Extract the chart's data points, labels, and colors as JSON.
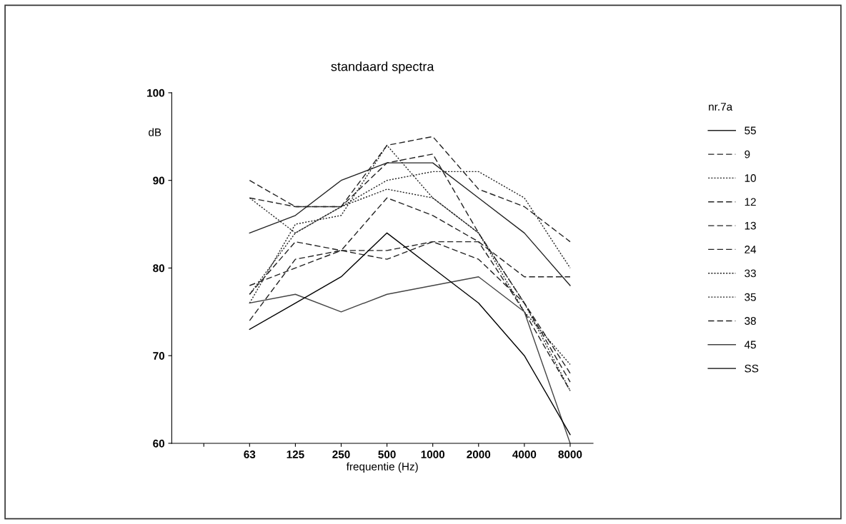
{
  "chart_data": {
    "type": "line",
    "title": "standaard spectra",
    "xlabel": "frequentie (Hz)",
    "ylabel": "dB",
    "legend_title": "nr.7a",
    "categories": [
      null,
      "63",
      "125",
      "250",
      "500",
      "1000",
      "2000",
      "4000",
      "8000"
    ],
    "ylim": [
      60,
      100
    ],
    "yticks": [
      60,
      70,
      80,
      90,
      100
    ],
    "grid": false,
    "legend": "right",
    "marker": "none",
    "series": [
      {
        "name": "55",
        "color": "#222222",
        "line_style": "solid",
        "values": [
          null,
          84,
          86,
          90,
          92,
          92,
          88,
          84,
          78
        ]
      },
      {
        "name": "9",
        "color": "#222222",
        "line_style": "dashed",
        "values": [
          null,
          74,
          81,
          82,
          88,
          86,
          83,
          79,
          79
        ]
      },
      {
        "name": "10",
        "color": "#222222",
        "line_style": "dotted",
        "values": [
          null,
          76,
          85,
          86,
          94,
          88,
          84,
          75,
          69
        ]
      },
      {
        "name": "12",
        "color": "#222222",
        "line_style": "dashed",
        "values": [
          null,
          90,
          87,
          87,
          94,
          95,
          89,
          87,
          83
        ]
      },
      {
        "name": "13",
        "color": "#222222",
        "line_style": "dashed",
        "values": [
          null,
          88,
          87,
          87,
          92,
          93,
          84,
          76,
          68
        ]
      },
      {
        "name": "24",
        "color": "#222222",
        "line_style": "dashed",
        "values": [
          null,
          78,
          80,
          82,
          81,
          83,
          81,
          76,
          67
        ]
      },
      {
        "name": "33",
        "color": "#222222",
        "line_style": "dotted",
        "values": [
          null,
          88,
          84,
          87,
          89,
          88,
          84,
          76,
          66
        ]
      },
      {
        "name": "35",
        "color": "#222222",
        "line_style": "dotted",
        "values": [
          null,
          77,
          84,
          87,
          90,
          91,
          91,
          88,
          80
        ]
      },
      {
        "name": "38",
        "color": "#222222",
        "line_style": "dashed",
        "values": [
          null,
          77,
          83,
          82,
          82,
          83,
          83,
          75,
          66
        ]
      },
      {
        "name": "45",
        "color": "#444444",
        "line_style": "solid",
        "values": [
          null,
          76,
          77,
          75,
          77,
          78,
          79,
          75,
          60
        ]
      },
      {
        "name": "SS",
        "color": "#000000",
        "line_style": "solid",
        "values": [
          null,
          73,
          76,
          79,
          84,
          80,
          76,
          70,
          61
        ]
      }
    ]
  }
}
